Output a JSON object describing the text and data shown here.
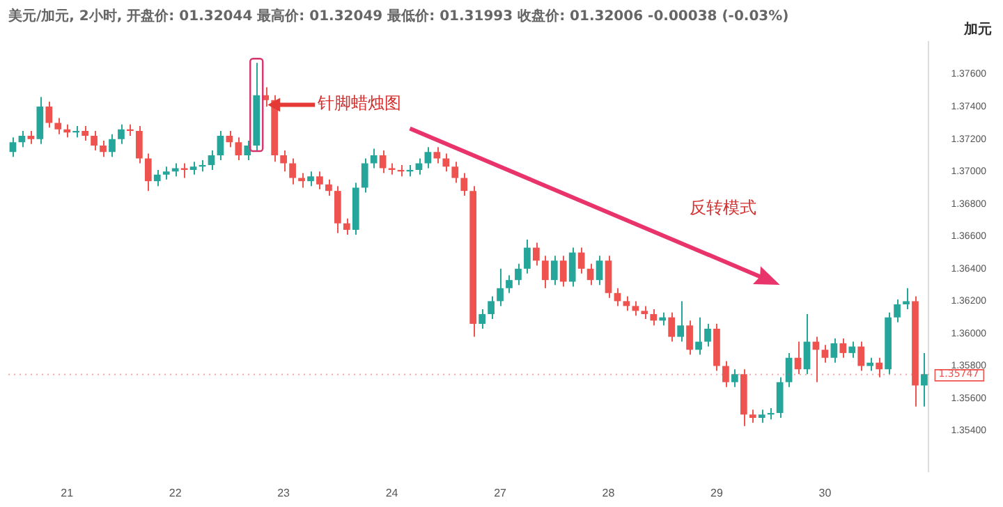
{
  "chart_data": {
    "type": "candlestick",
    "title": "美元/加元, 2小时, 开盘价: 01.32044 最高价: 01.32049 最低价: 01.31993 收盘价: 01.32006 -0.00038 (-0.03%)",
    "ylabel": "加元",
    "annotations": [
      "针脚蜡烛图",
      "反转模式"
    ],
    "categories": [
      null,
      null,
      null,
      null,
      null,
      null,
      "21",
      null,
      null,
      null,
      null,
      null,
      null,
      null,
      null,
      null,
      null,
      null,
      "22",
      null,
      null,
      null,
      null,
      null,
      null,
      null,
      null,
      null,
      null,
      null,
      "23",
      null,
      null,
      null,
      null,
      null,
      null,
      null,
      null,
      null,
      null,
      null,
      "24",
      null,
      null,
      null,
      null,
      null,
      null,
      null,
      null,
      null,
      null,
      null,
      "27",
      null,
      null,
      null,
      null,
      null,
      null,
      null,
      null,
      null,
      null,
      null,
      "28",
      null,
      null,
      null,
      null,
      null,
      null,
      null,
      null,
      null,
      null,
      null,
      "29",
      null,
      null,
      null,
      null,
      null,
      null,
      null,
      null,
      null,
      null,
      null,
      "30",
      null,
      null,
      null,
      null,
      null,
      null,
      null,
      null,
      null,
      null,
      null
    ],
    "ohlc": [
      [
        1.3712,
        1.3721,
        1.3709,
        1.3718
      ],
      [
        1.3718,
        1.3725,
        1.3715,
        1.3722
      ],
      [
        1.3722,
        1.3725,
        1.3717,
        1.372
      ],
      [
        1.372,
        1.3746,
        1.3717,
        1.374
      ],
      [
        1.374,
        1.3743,
        1.3727,
        1.373
      ],
      [
        1.373,
        1.3733,
        1.3723,
        1.3726
      ],
      [
        1.3726,
        1.3729,
        1.3721,
        1.3724
      ],
      [
        1.3724,
        1.3728,
        1.3721,
        1.3725
      ],
      [
        1.3725,
        1.3728,
        1.3719,
        1.3722
      ],
      [
        1.3722,
        1.3725,
        1.3713,
        1.3716
      ],
      [
        1.3716,
        1.3719,
        1.3709,
        1.3712
      ],
      [
        1.3712,
        1.3723,
        1.3709,
        1.372
      ],
      [
        1.372,
        1.3729,
        1.3717,
        1.3726
      ],
      [
        1.3726,
        1.3729,
        1.3722,
        1.3725
      ],
      [
        1.3725,
        1.3728,
        1.3705,
        1.3708
      ],
      [
        1.3708,
        1.3711,
        1.3688,
        1.3694
      ],
      [
        1.3694,
        1.3701,
        1.3691,
        1.3698
      ],
      [
        1.3698,
        1.3703,
        1.3695,
        1.37
      ],
      [
        1.37,
        1.3705,
        1.3697,
        1.3702
      ],
      [
        1.3702,
        1.3705,
        1.3696,
        1.3701
      ],
      [
        1.3701,
        1.3706,
        1.3698,
        1.3703
      ],
      [
        1.3703,
        1.3707,
        1.37,
        1.3704
      ],
      [
        1.3704,
        1.3713,
        1.3701,
        1.371
      ],
      [
        1.371,
        1.3725,
        1.3707,
        1.3722
      ],
      [
        1.3722,
        1.3725,
        1.3715,
        1.3718
      ],
      [
        1.3718,
        1.3721,
        1.3707,
        1.371
      ],
      [
        1.371,
        1.3719,
        1.3707,
        1.3716
      ],
      [
        1.3716,
        1.3767,
        1.3713,
        1.3747
      ],
      [
        1.3747,
        1.3752,
        1.374,
        1.3744
      ],
      [
        1.3744,
        1.3747,
        1.3706,
        1.371
      ],
      [
        1.371,
        1.3713,
        1.37,
        1.3705
      ],
      [
        1.3705,
        1.3708,
        1.3692,
        1.3696
      ],
      [
        1.3696,
        1.3699,
        1.369,
        1.3694
      ],
      [
        1.3694,
        1.37,
        1.3691,
        1.3697
      ],
      [
        1.3697,
        1.37,
        1.3689,
        1.3692
      ],
      [
        1.3692,
        1.3695,
        1.3685,
        1.3688
      ],
      [
        1.3688,
        1.3691,
        1.3662,
        1.3668
      ],
      [
        1.3668,
        1.3671,
        1.3661,
        1.3664
      ],
      [
        1.3664,
        1.3693,
        1.3661,
        1.369
      ],
      [
        1.369,
        1.3708,
        1.3687,
        1.3705
      ],
      [
        1.3705,
        1.3714,
        1.3702,
        1.371
      ],
      [
        1.371,
        1.3713,
        1.3699,
        1.3702
      ],
      [
        1.3702,
        1.3705,
        1.3698,
        1.3701
      ],
      [
        1.3701,
        1.3704,
        1.3697,
        1.37
      ],
      [
        1.37,
        1.3704,
        1.3697,
        1.3701
      ],
      [
        1.3701,
        1.3708,
        1.3698,
        1.3705
      ],
      [
        1.3705,
        1.3715,
        1.3702,
        1.3712
      ],
      [
        1.3712,
        1.3715,
        1.3705,
        1.3708
      ],
      [
        1.3708,
        1.3711,
        1.37,
        1.3703
      ],
      [
        1.3703,
        1.3706,
        1.3693,
        1.3696
      ],
      [
        1.3696,
        1.3699,
        1.3685,
        1.3688
      ],
      [
        1.3688,
        1.3691,
        1.3598,
        1.3606
      ],
      [
        1.3606,
        1.3615,
        1.3603,
        1.3612
      ],
      [
        1.3612,
        1.3623,
        1.3609,
        1.362
      ],
      [
        1.362,
        1.364,
        1.3617,
        1.3628
      ],
      [
        1.3628,
        1.3636,
        1.3625,
        1.3633
      ],
      [
        1.3633,
        1.3643,
        1.363,
        1.364
      ],
      [
        1.364,
        1.3658,
        1.3637,
        1.3653
      ],
      [
        1.3653,
        1.3656,
        1.3642,
        1.3645
      ],
      [
        1.3645,
        1.3648,
        1.3628,
        1.3633
      ],
      [
        1.3633,
        1.3648,
        1.363,
        1.3645
      ],
      [
        1.3645,
        1.3648,
        1.3629,
        1.3632
      ],
      [
        1.3632,
        1.3653,
        1.3629,
        1.365
      ],
      [
        1.365,
        1.3653,
        1.3637,
        1.364
      ],
      [
        1.364,
        1.3643,
        1.363,
        1.3633
      ],
      [
        1.3633,
        1.3648,
        1.363,
        1.3645
      ],
      [
        1.3645,
        1.3648,
        1.3622,
        1.3625
      ],
      [
        1.3625,
        1.3628,
        1.3617,
        1.362
      ],
      [
        1.362,
        1.3623,
        1.3614,
        1.3617
      ],
      [
        1.3617,
        1.362,
        1.3611,
        1.3614
      ],
      [
        1.3614,
        1.3617,
        1.3609,
        1.3612
      ],
      [
        1.3612,
        1.3615,
        1.3605,
        1.3608
      ],
      [
        1.3608,
        1.3613,
        1.3605,
        1.361
      ],
      [
        1.361,
        1.3613,
        1.3595,
        1.3598
      ],
      [
        1.3598,
        1.362,
        1.3595,
        1.3605
      ],
      [
        1.3605,
        1.3608,
        1.3587,
        1.359
      ],
      [
        1.359,
        1.361,
        1.3587,
        1.3595
      ],
      [
        1.3595,
        1.3606,
        1.3592,
        1.3603
      ],
      [
        1.3603,
        1.3606,
        1.3577,
        1.358
      ],
      [
        1.358,
        1.3583,
        1.3567,
        1.357
      ],
      [
        1.357,
        1.3578,
        1.3567,
        1.3575
      ],
      [
        1.3575,
        1.3578,
        1.3543,
        1.355
      ],
      [
        1.355,
        1.3553,
        1.3545,
        1.3548
      ],
      [
        1.3548,
        1.3553,
        1.3545,
        1.355
      ],
      [
        1.355,
        1.3554,
        1.3547,
        1.3551
      ],
      [
        1.3551,
        1.3573,
        1.3548,
        1.357
      ],
      [
        1.357,
        1.3588,
        1.3567,
        1.3585
      ],
      [
        1.3585,
        1.3595,
        1.3575,
        1.3578
      ],
      [
        1.3578,
        1.3612,
        1.3575,
        1.3595
      ],
      [
        1.3595,
        1.3598,
        1.357,
        1.359
      ],
      [
        1.359,
        1.3593,
        1.3582,
        1.3585
      ],
      [
        1.3585,
        1.3597,
        1.3582,
        1.3594
      ],
      [
        1.3594,
        1.3597,
        1.3585,
        1.3588
      ],
      [
        1.3588,
        1.3595,
        1.3585,
        1.3592
      ],
      [
        1.3592,
        1.3595,
        1.3577,
        1.358
      ],
      [
        1.358,
        1.3585,
        1.3577,
        1.3582
      ],
      [
        1.3582,
        1.3585,
        1.3573,
        1.3578
      ],
      [
        1.3578,
        1.3613,
        1.3575,
        1.361
      ],
      [
        1.361,
        1.3621,
        1.3607,
        1.3618
      ],
      [
        1.3618,
        1.3628,
        1.3615,
        1.362
      ],
      [
        1.362,
        1.3623,
        1.3555,
        1.3568
      ],
      [
        1.3568,
        1.3588,
        1.3555,
        1.3575
      ]
    ],
    "ylim": [
      1.3515,
      1.378
    ],
    "yticks": [
      {
        "value": 1.354,
        "label": "1.35400"
      },
      {
        "value": 1.356,
        "label": "1.35600"
      },
      {
        "value": 1.358,
        "label": "1.35800"
      },
      {
        "value": 1.36,
        "label": "1.36000"
      },
      {
        "value": 1.362,
        "label": "1.36200"
      },
      {
        "value": 1.364,
        "label": "1.36400"
      },
      {
        "value": 1.366,
        "label": "1.36600"
      },
      {
        "value": 1.368,
        "label": "1.36800"
      },
      {
        "value": 1.37,
        "label": "1.37000"
      },
      {
        "value": 1.372,
        "label": "1.37200"
      },
      {
        "value": 1.374,
        "label": "1.37400"
      },
      {
        "value": 1.376,
        "label": "1.37600"
      }
    ],
    "ref_lines": [
      {
        "axis": "y",
        "value": 1.35747,
        "label": "1.35747",
        "color": "#ef5350",
        "line_style": "dotted"
      }
    ],
    "grid": false,
    "legend": false
  }
}
